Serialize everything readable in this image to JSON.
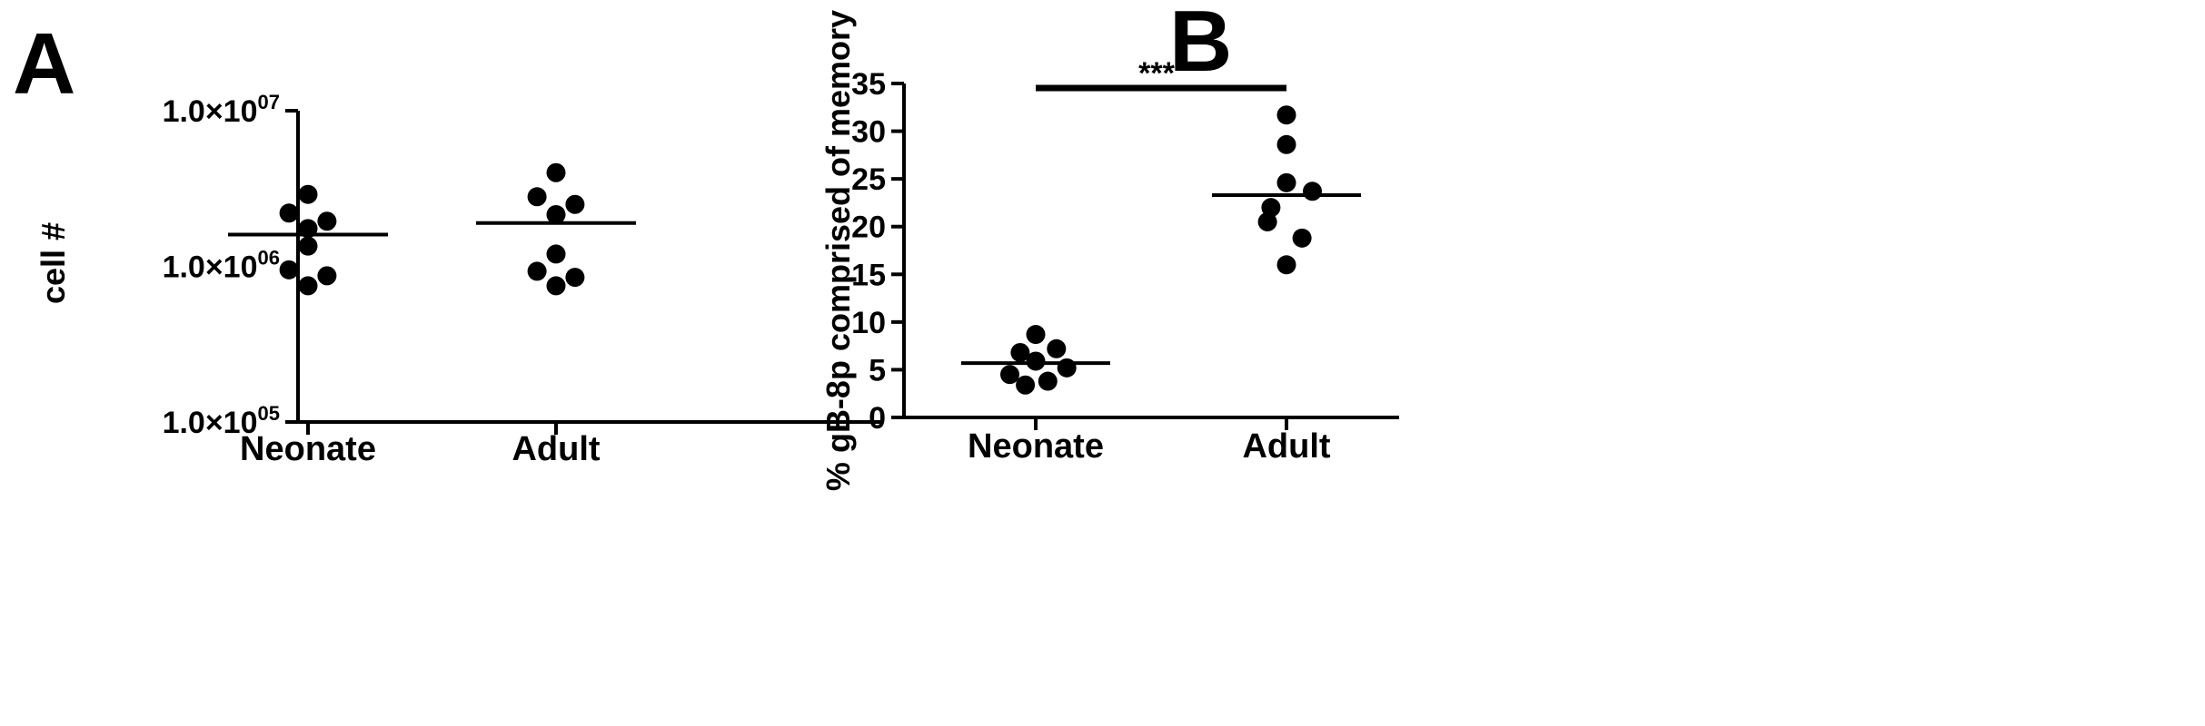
{
  "chart_data": [
    {
      "panel": "A",
      "type": "scatter",
      "xlabel": "",
      "ylabel": "cell #",
      "yscale": "log",
      "ylim": [
        100000,
        10000000
      ],
      "yticks": [
        {
          "value": 100000,
          "base": "1.0×10",
          "exp": "05"
        },
        {
          "value": 1000000,
          "base": "1.0×10",
          "exp": "06"
        },
        {
          "value": 10000000,
          "base": "1.0×10",
          "exp": "07"
        }
      ],
      "categories": [
        "Neonate",
        "Adult"
      ],
      "series": [
        {
          "category": "Neonate",
          "mean": 1600000,
          "points": [
            {
              "y": 2900000,
              "off": 0.0
            },
            {
              "y": 2200000,
              "off": -0.55
            },
            {
              "y": 1950000,
              "off": 0.55
            },
            {
              "y": 1750000,
              "off": 0.0
            },
            {
              "y": 1350000,
              "off": 0.0
            },
            {
              "y": 950000,
              "off": -0.55
            },
            {
              "y": 870000,
              "off": 0.55
            },
            {
              "y": 750000,
              "off": 0.0
            }
          ]
        },
        {
          "category": "Adult",
          "mean": 1900000,
          "points": [
            {
              "y": 4000000,
              "off": 0.0
            },
            {
              "y": 2800000,
              "off": -0.55
            },
            {
              "y": 2500000,
              "off": 0.55
            },
            {
              "y": 2150000,
              "off": 0.0
            },
            {
              "y": 1200000,
              "off": 0.0
            },
            {
              "y": 930000,
              "off": -0.55
            },
            {
              "y": 850000,
              "off": 0.55
            },
            {
              "y": 750000,
              "off": 0.0
            }
          ]
        }
      ]
    },
    {
      "panel": "B",
      "type": "scatter",
      "xlabel": "",
      "ylabel": "% gB-8p comprised of memory",
      "yscale": "linear",
      "ylim": [
        0,
        35
      ],
      "yticks": [
        0,
        5,
        10,
        15,
        20,
        25,
        30,
        35
      ],
      "categories": [
        "Neonate",
        "Adult"
      ],
      "significance": {
        "label": "***",
        "between": [
          "Neonate",
          "Adult"
        ]
      },
      "series": [
        {
          "category": "Neonate",
          "mean": 5.7,
          "points": [
            {
              "y": 8.7,
              "off": 0.0
            },
            {
              "y": 7.2,
              "off": 0.6
            },
            {
              "y": 6.8,
              "off": -0.45
            },
            {
              "y": 5.9,
              "off": 0.0
            },
            {
              "y": 5.2,
              "off": 0.9
            },
            {
              "y": 4.5,
              "off": -0.75
            },
            {
              "y": 3.8,
              "off": 0.35
            },
            {
              "y": 3.4,
              "off": -0.3
            }
          ]
        },
        {
          "category": "Adult",
          "mean": 23.3,
          "points": [
            {
              "y": 31.7,
              "off": 0.0
            },
            {
              "y": 28.6,
              "off": 0.0
            },
            {
              "y": 24.6,
              "off": 0.0
            },
            {
              "y": 23.7,
              "off": 0.75
            },
            {
              "y": 22.0,
              "off": -0.45
            },
            {
              "y": 20.5,
              "off": -0.55
            },
            {
              "y": 18.8,
              "off": 0.45
            },
            {
              "y": 16.0,
              "off": 0.0
            }
          ]
        }
      ]
    }
  ]
}
